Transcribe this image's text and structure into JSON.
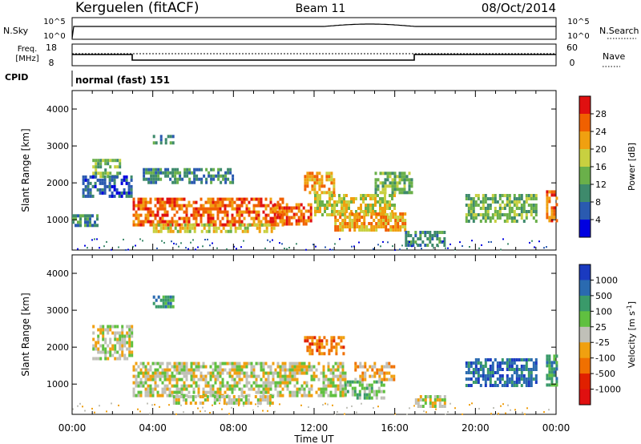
{
  "header": {
    "station": "Kerguelen (fitACF)",
    "beam": "Beam 11",
    "date": "08/Oct/2014"
  },
  "top_panels": {
    "nsky_label": "N.Sky",
    "nsky_ticks": [
      "10^5",
      "10^0"
    ],
    "nsearch_label": "N.Search",
    "nsearch_ticks": [
      "10^5",
      "10^0"
    ],
    "freq_label_line1": "Freq.",
    "freq_label_line2": "[MHz]",
    "freq_ticks": [
      "18",
      "8"
    ],
    "nave_label": "Nave",
    "nave_ticks": [
      "60",
      "0"
    ],
    "cpid_label": "CPID",
    "cpid_value": "normal (fast) 151"
  },
  "chart_data": [
    {
      "type": "heatmap",
      "name": "power-panel",
      "ylabel": "Slant Range [km]",
      "ylim": [
        180,
        4500
      ],
      "yticks": [
        1000,
        2000,
        3000,
        4000
      ],
      "xlim": [
        0,
        24
      ],
      "colorbar": {
        "label": "Power [dB]",
        "ticks": [
          "4",
          "8",
          "12",
          "16",
          "20",
          "24",
          "28"
        ],
        "colors": [
          "#0000e0",
          "#2a5ab0",
          "#3e8a6c",
          "#6ab04a",
          "#c8d040",
          "#f0a010",
          "#f06000",
          "#e01010"
        ]
      },
      "regions": [
        {
          "t": [
            0.0,
            1.2
          ],
          "r": [
            880,
            1150
          ],
          "level": 2
        },
        {
          "t": [
            1.0,
            2.4
          ],
          "r": [
            2150,
            2650
          ],
          "level": 3
        },
        {
          "t": [
            0.5,
            3.0
          ],
          "r": [
            1600,
            2200
          ],
          "level": 1
        },
        {
          "t": [
            3.0,
            10.5
          ],
          "r": [
            900,
            1600
          ],
          "level": 6
        },
        {
          "t": [
            4.0,
            10.0
          ],
          "r": [
            650,
            900
          ],
          "level": 4
        },
        {
          "t": [
            10.0,
            11.8
          ],
          "r": [
            900,
            1450
          ],
          "level": 6
        },
        {
          "t": [
            11.5,
            13.0
          ],
          "r": [
            1700,
            2300
          ],
          "level": 5
        },
        {
          "t": [
            12.0,
            16.0
          ],
          "r": [
            1100,
            1700
          ],
          "level": 4
        },
        {
          "t": [
            13.0,
            16.5
          ],
          "r": [
            700,
            1200
          ],
          "level": 5
        },
        {
          "t": [
            15.0,
            16.8
          ],
          "r": [
            1700,
            2300
          ],
          "level": 3
        },
        {
          "t": [
            3.5,
            8.0
          ],
          "r": [
            2000,
            2400
          ],
          "level": 2
        },
        {
          "t": [
            4.0,
            5.0
          ],
          "r": [
            3100,
            3300
          ],
          "level": 2
        },
        {
          "t": [
            16.5,
            18.5
          ],
          "r": [
            350,
            700
          ],
          "level": 2
        },
        {
          "t": [
            19.5,
            23.0
          ],
          "r": [
            1000,
            1700
          ],
          "level": 3
        },
        {
          "t": [
            23.5,
            24.0
          ],
          "r": [
            1000,
            1800
          ],
          "level": 6
        }
      ]
    },
    {
      "type": "heatmap",
      "name": "velocity-panel",
      "ylabel": "Slant Range [km]",
      "xlabel": "Time UT",
      "xticks": [
        "00:00",
        "04:00",
        "08:00",
        "12:00",
        "16:00",
        "20:00",
        "00:00"
      ],
      "ylim": [
        180,
        4500
      ],
      "yticks": [
        1000,
        2000,
        3000,
        4000
      ],
      "xlim": [
        0,
        24
      ],
      "colorbar": {
        "label": "Velocity [m s",
        "label_sup": "-1",
        "label_end": "]",
        "ticks": [
          "1000",
          "500",
          "100",
          "25",
          "-25",
          "-100",
          "-500",
          "-1000"
        ],
        "colors": [
          "#1a3ac0",
          "#2a6ab0",
          "#3a9a6a",
          "#60c040",
          "#c0c0b8",
          "#f0a010",
          "#f07000",
          "#e02000",
          "#e01010"
        ]
      },
      "regions": [
        {
          "t": [
            1.0,
            3.0
          ],
          "r": [
            1700,
            2600
          ],
          "level": 4
        },
        {
          "t": [
            3.0,
            13.5
          ],
          "r": [
            700,
            1600
          ],
          "level": 4
        },
        {
          "t": [
            5.0,
            10.0
          ],
          "r": [
            500,
            700
          ],
          "level": 4
        },
        {
          "t": [
            11.5,
            13.5
          ],
          "r": [
            1800,
            2300
          ],
          "level": 6
        },
        {
          "t": [
            13.5,
            15.5
          ],
          "r": [
            600,
            1100
          ],
          "level": 3
        },
        {
          "t": [
            14.0,
            16.0
          ],
          "r": [
            1100,
            1600
          ],
          "level": 5
        },
        {
          "t": [
            4.0,
            5.0
          ],
          "r": [
            3100,
            3400
          ],
          "level": 2
        },
        {
          "t": [
            19.5,
            23.0
          ],
          "r": [
            1000,
            1700
          ],
          "level": 1
        },
        {
          "t": [
            23.5,
            24.0
          ],
          "r": [
            1000,
            1800
          ],
          "level": 2
        },
        {
          "t": [
            17.0,
            18.5
          ],
          "r": [
            400,
            700
          ],
          "level": 4
        }
      ]
    }
  ]
}
